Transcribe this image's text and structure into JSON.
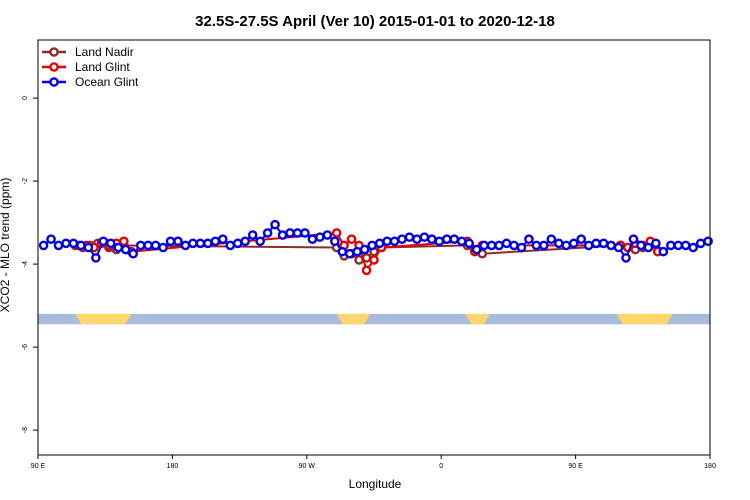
{
  "chart_data": {
    "type": "line",
    "title": "32.5S-27.5S April (Ver 10)   2015-01-01 to 2020-12-18",
    "xlabel": "Longitude",
    "ylabel": "XCO2 - MLO trend (ppm)",
    "xlim": [
      0,
      360
    ],
    "ylim": [
      -8.6,
      1.4
    ],
    "x_ticks": [
      {
        "value": 0,
        "label": "90 E"
      },
      {
        "value": 72,
        "label": "180"
      },
      {
        "value": 144,
        "label": "90 W"
      },
      {
        "value": 216,
        "label": "0"
      },
      {
        "value": 288,
        "label": "90 E"
      },
      {
        "value": 360,
        "label": "180"
      }
    ],
    "y_ticks": [
      {
        "value": 0,
        "label": "0"
      },
      {
        "value": -2,
        "label": "-2"
      },
      {
        "value": -4,
        "label": "-4"
      },
      {
        "value": -6,
        "label": "-6"
      },
      {
        "value": -8,
        "label": "-8"
      }
    ],
    "legend_position": "top-left",
    "series": [
      {
        "name": "Land Nadir",
        "color": "#8B2D2D",
        "x": [
          20,
          24,
          28,
          32,
          38,
          42,
          46,
          160,
          164,
          168,
          172,
          176,
          180,
          184,
          230,
          234,
          238,
          312,
          316,
          320,
          324,
          328
        ],
        "y": [
          -3.55,
          -3.6,
          -3.55,
          -3.5,
          -3.6,
          -3.65,
          -3.55,
          -3.6,
          -3.8,
          -3.75,
          -3.9,
          -3.85,
          -3.7,
          -3.6,
          -3.55,
          -3.65,
          -3.75,
          -3.55,
          -3.6,
          -3.65,
          -3.6,
          -3.55
        ]
      },
      {
        "name": "Land Glint",
        "color": "#E50000",
        "x": [
          22,
          26,
          30,
          34,
          38,
          42,
          46,
          50,
          160,
          164,
          168,
          172,
          176,
          180,
          184,
          230,
          234,
          238,
          312,
          316,
          320,
          324,
          328,
          332
        ],
        "y": [
          -3.55,
          -3.55,
          -3.6,
          -3.5,
          -3.55,
          -3.5,
          -3.45,
          -3.7,
          -3.25,
          -3.55,
          -3.4,
          -3.55,
          -4.15,
          -3.9,
          -3.6,
          -3.45,
          -3.7,
          -3.55,
          -3.55,
          -3.6,
          -3.5,
          -3.55,
          -3.45,
          -3.7
        ]
      },
      {
        "name": "Ocean Glint",
        "color": "#0000E6",
        "x": [
          3,
          7,
          11,
          15,
          19,
          23,
          27,
          31,
          35,
          39,
          43,
          47,
          51,
          55,
          59,
          63,
          67,
          71,
          75,
          79,
          83,
          87,
          91,
          95,
          99,
          103,
          107,
          111,
          115,
          119,
          123,
          127,
          131,
          135,
          139,
          143,
          147,
          151,
          155,
          159,
          163,
          167,
          171,
          175,
          179,
          183,
          187,
          191,
          195,
          199,
          203,
          207,
          211,
          215,
          219,
          223,
          227,
          231,
          235,
          239,
          243,
          247,
          251,
          255,
          259,
          263,
          267,
          271,
          275,
          279,
          283,
          287,
          291,
          295,
          299,
          303,
          307,
          311,
          315,
          319,
          323,
          327,
          331,
          335,
          339,
          343,
          347,
          351,
          355,
          359
        ],
        "y": [
          -3.55,
          -3.4,
          -3.55,
          -3.5,
          -3.5,
          -3.55,
          -3.6,
          -3.85,
          -3.45,
          -3.5,
          -3.6,
          -3.65,
          -3.75,
          -3.55,
          -3.55,
          -3.55,
          -3.6,
          -3.45,
          -3.45,
          -3.55,
          -3.5,
          -3.5,
          -3.5,
          -3.45,
          -3.4,
          -3.55,
          -3.5,
          -3.45,
          -3.3,
          -3.45,
          -3.25,
          -3.05,
          -3.3,
          -3.25,
          -3.25,
          -3.25,
          -3.4,
          -3.35,
          -3.3,
          -3.45,
          -3.7,
          -3.75,
          -3.7,
          -3.65,
          -3.55,
          -3.5,
          -3.45,
          -3.45,
          -3.4,
          -3.35,
          -3.4,
          -3.35,
          -3.4,
          -3.45,
          -3.4,
          -3.4,
          -3.45,
          -3.5,
          -3.65,
          -3.55,
          -3.55,
          -3.55,
          -3.5,
          -3.55,
          -3.6,
          -3.4,
          -3.55,
          -3.55,
          -3.4,
          -3.5,
          -3.55,
          -3.5,
          -3.4,
          -3.55,
          -3.5,
          -3.5,
          -3.55,
          -3.6,
          -3.85,
          -3.4,
          -3.55,
          -3.6,
          -3.5,
          -3.7,
          -3.55,
          -3.55,
          -3.55,
          -3.6,
          -3.5,
          -3.45
        ]
      }
    ],
    "land_band": {
      "y_range": [
        -5.45,
        -5.2
      ],
      "ocean_color": "#A9BCDB",
      "land_color": "#FFD66E",
      "land_segments": [
        [
          20,
          50
        ],
        [
          160,
          178
        ],
        [
          229,
          242
        ],
        [
          310,
          340
        ]
      ]
    }
  }
}
